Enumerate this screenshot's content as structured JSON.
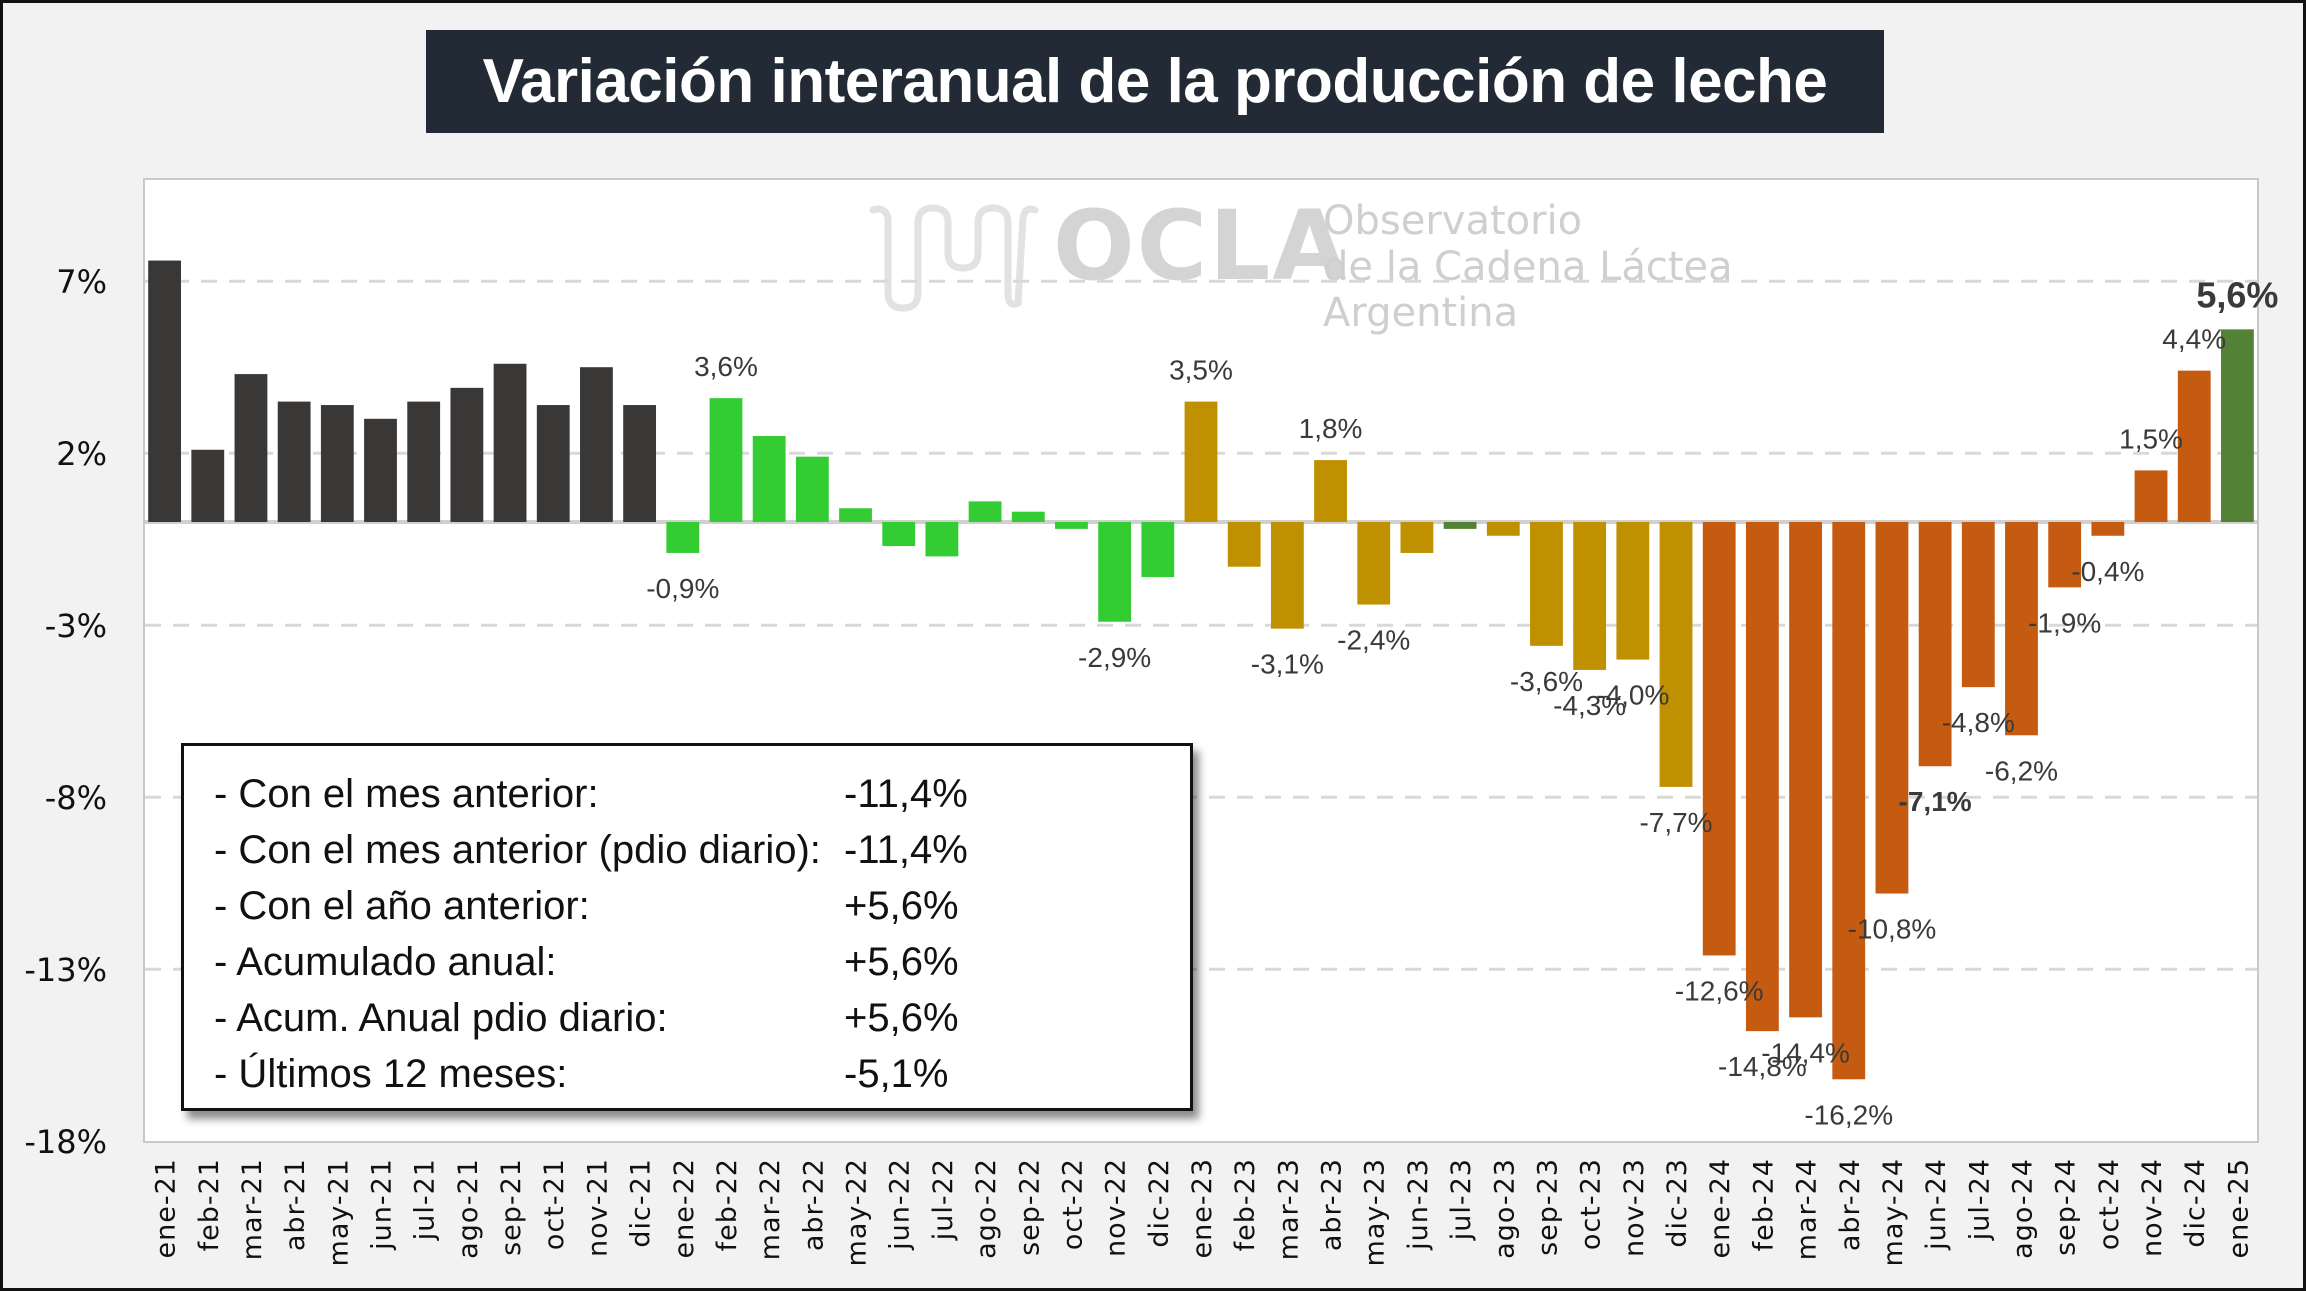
{
  "title": "Variación interanual de la producción de leche",
  "watermark": {
    "name": "OCLA",
    "line1": "Observatorio",
    "line2": "de la Cadena Láctea",
    "line3": "Argentina"
  },
  "stats_box": {
    "rows": [
      {
        "label": "- Con el mes anterior:",
        "value": "-11,4%"
      },
      {
        "label": "- Con el mes anterior (pdio diario):",
        "value": "-11,4%"
      },
      {
        "label": "- Con el año anterior:",
        "value": "+5,6%"
      },
      {
        "label": "- Acumulado anual:",
        "value": "+5,6%"
      },
      {
        "label": "- Acum. Anual pdio diario:",
        "value": "+5,6%"
      },
      {
        "label": "- Últimos 12 meses:",
        "value": "-5,1%"
      }
    ]
  },
  "colors": {
    "y2021": "#3a3836",
    "y2022": "#33cc33",
    "y2023": "#bf9000",
    "jul23": "#538135",
    "y2024": "#c55a11",
    "y2025": "#538135",
    "label": "#3a3a3a",
    "grid": "#d9d9d9"
  },
  "chart_data": {
    "type": "bar",
    "title": "Variación interanual de la producción de leche",
    "xlabel": "",
    "ylabel": "",
    "ylim": [
      -18,
      10
    ],
    "yticks": [
      7,
      2,
      -3,
      -8,
      -13,
      -18
    ],
    "ytick_labels": [
      "7%",
      "2%",
      "-3%",
      "-8%",
      "-13%",
      "-18%"
    ],
    "grid": "horizontal dashed",
    "categories": [
      "ene-21",
      "feb-21",
      "mar-21",
      "abr-21",
      "may-21",
      "jun-21",
      "jul-21",
      "ago-21",
      "sep-21",
      "oct-21",
      "nov-21",
      "dic-21",
      "ene-22",
      "feb-22",
      "mar-22",
      "abr-22",
      "may-22",
      "jun-22",
      "jul-22",
      "ago-22",
      "sep-22",
      "oct-22",
      "nov-22",
      "dic-22",
      "ene-23",
      "feb-23",
      "mar-23",
      "abr-23",
      "may-23",
      "jun-23",
      "jul-23",
      "ago-23",
      "sep-23",
      "oct-23",
      "nov-23",
      "dic-23",
      "ene-24",
      "feb-24",
      "mar-24",
      "abr-24",
      "may-24",
      "jun-24",
      "jul-24",
      "ago-24",
      "sep-24",
      "oct-24",
      "nov-24",
      "dic-24",
      "ene-25"
    ],
    "values": [
      7.6,
      2.1,
      4.3,
      3.5,
      3.4,
      3.0,
      3.5,
      3.9,
      4.6,
      3.4,
      4.5,
      3.4,
      -0.9,
      3.6,
      2.5,
      1.9,
      0.4,
      -0.7,
      -1.0,
      0.6,
      0.3,
      -0.2,
      -2.9,
      -1.6,
      3.5,
      -1.3,
      -3.1,
      1.8,
      -2.4,
      -0.9,
      -0.2,
      -0.4,
      -3.6,
      -4.3,
      -4.0,
      -7.7,
      -12.6,
      -14.8,
      -14.4,
      -16.2,
      -10.8,
      -7.1,
      -4.8,
      -6.2,
      -1.9,
      -0.4,
      1.5,
      4.4,
      5.6
    ],
    "color_groups": [
      "y2021",
      "y2021",
      "y2021",
      "y2021",
      "y2021",
      "y2021",
      "y2021",
      "y2021",
      "y2021",
      "y2021",
      "y2021",
      "y2021",
      "y2022",
      "y2022",
      "y2022",
      "y2022",
      "y2022",
      "y2022",
      "y2022",
      "y2022",
      "y2022",
      "y2022",
      "y2022",
      "y2022",
      "y2023",
      "y2023",
      "y2023",
      "y2023",
      "y2023",
      "y2023",
      "jul23",
      "y2023",
      "y2023",
      "y2023",
      "y2023",
      "y2023",
      "y2024",
      "y2024",
      "y2024",
      "y2024",
      "y2024",
      "y2024",
      "y2024",
      "y2024",
      "y2024",
      "y2024",
      "y2024",
      "y2024",
      "y2025"
    ],
    "data_labels": [
      {
        "index": 12,
        "text": "-0,9%"
      },
      {
        "index": 13,
        "text": "3,6%"
      },
      {
        "index": 22,
        "text": "-2,9%"
      },
      {
        "index": 24,
        "text": "3,5%"
      },
      {
        "index": 26,
        "text": "-3,1%"
      },
      {
        "index": 27,
        "text": "1,8%"
      },
      {
        "index": 28,
        "text": "-2,4%"
      },
      {
        "index": 32,
        "text": "-3,6%"
      },
      {
        "index": 33,
        "text": "-4,3%"
      },
      {
        "index": 34,
        "text": "-4,0%"
      },
      {
        "index": 35,
        "text": "-7,7%"
      },
      {
        "index": 36,
        "text": "-12,6%"
      },
      {
        "index": 37,
        "text": "-14,8%"
      },
      {
        "index": 38,
        "text": "-14,4%"
      },
      {
        "index": 39,
        "text": "-16,2%"
      },
      {
        "index": 40,
        "text": "-10,8%"
      },
      {
        "index": 41,
        "text": "-7,1%",
        "bold": true
      },
      {
        "index": 42,
        "text": "-4,8%"
      },
      {
        "index": 43,
        "text": "-6,2%"
      },
      {
        "index": 44,
        "text": "-1,9%"
      },
      {
        "index": 45,
        "text": "-0,4%"
      },
      {
        "index": 46,
        "text": "1,5%"
      },
      {
        "index": 47,
        "text": "4,4%"
      },
      {
        "index": 48,
        "text": "5,6%",
        "bold": true,
        "large": true
      }
    ]
  }
}
